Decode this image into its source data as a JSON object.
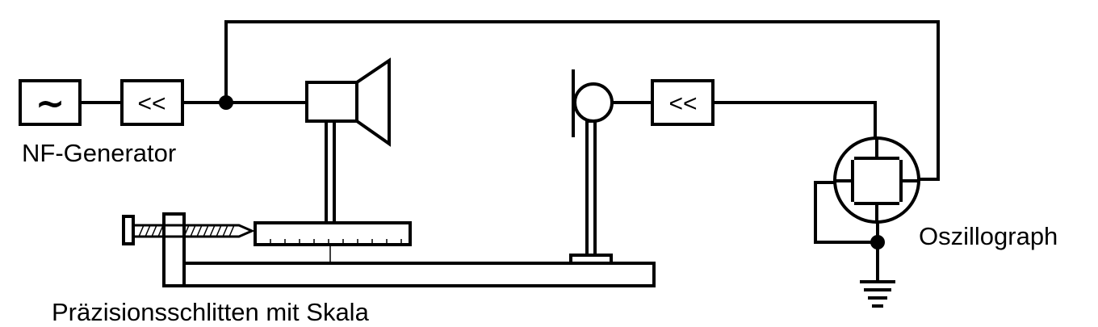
{
  "labels": {
    "generator": "NF-Generator",
    "oscilloscope": "Oszillograph",
    "slide": "Präzisionsschlitten mit Skala"
  },
  "symbols": {
    "generator_glyph": "~",
    "amplifier_left": "<<",
    "amplifier_right": "<<"
  },
  "colors": {
    "line": "#000000",
    "background": "#ffffff"
  }
}
